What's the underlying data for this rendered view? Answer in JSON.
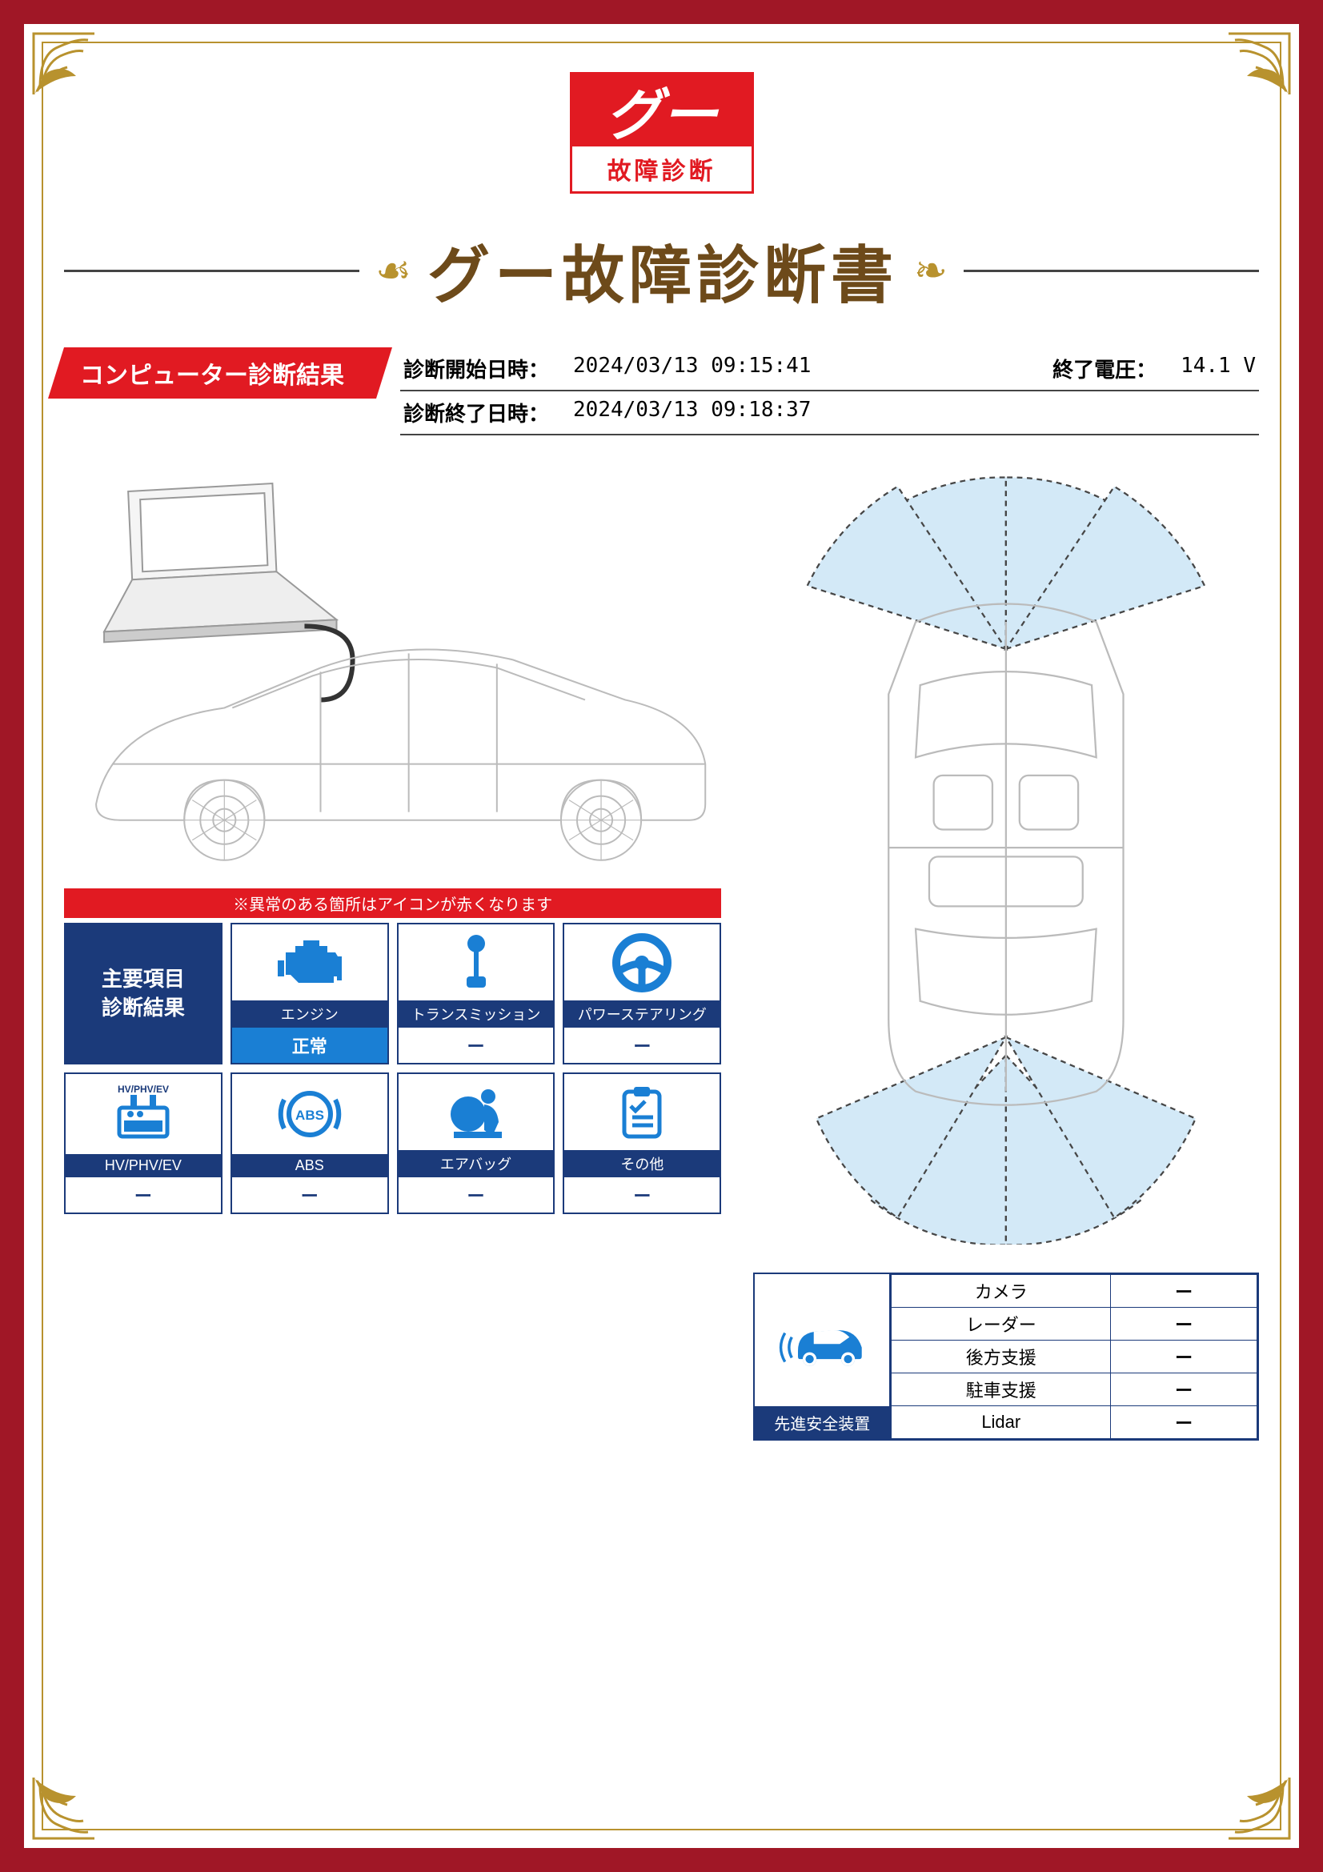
{
  "colors": {
    "frame": "#a01726",
    "gold": "#b8922e",
    "red": "#e11a22",
    "navy": "#1b3a7a",
    "blue": "#1a7fd4",
    "icon": "#1a7fd4",
    "title_brown": "#6d4a1a"
  },
  "logo": {
    "brand": "グー",
    "subtitle": "故障診断"
  },
  "title": "グー故障診断書",
  "section_tag": "コンピューター診断結果",
  "meta": {
    "start_label": "診断開始日時：",
    "start_value": "2024/03/13 09:15:41",
    "voltage_label": "終了電圧：",
    "voltage_value": "14.1 V",
    "end_label": "診断終了日時：",
    "end_value": "2024/03/13 09:18:37"
  },
  "diag": {
    "banner": "※異常のある箇所はアイコンが赤くなります",
    "header_line1": "主要項目",
    "header_line2": "診断結果",
    "items": [
      {
        "label": "エンジン",
        "status": "正常",
        "status_class": "ok",
        "icon": "engine"
      },
      {
        "label": "トランスミッション",
        "status": "ー",
        "status_class": "",
        "icon": "transmission"
      },
      {
        "label": "パワーステアリング",
        "status": "ー",
        "status_class": "",
        "icon": "steering"
      },
      {
        "label": "HV/PHV/EV",
        "status": "ー",
        "status_class": "",
        "icon": "hvev"
      },
      {
        "label": "ABS",
        "status": "ー",
        "status_class": "",
        "icon": "abs"
      },
      {
        "label": "エアバッグ",
        "status": "ー",
        "status_class": "",
        "icon": "airbag"
      },
      {
        "label": "その他",
        "status": "ー",
        "status_class": "",
        "icon": "clipboard"
      }
    ]
  },
  "safety": {
    "title": "先進安全装置",
    "rows": [
      {
        "name": "カメラ",
        "value": "ー"
      },
      {
        "name": "レーダー",
        "value": "ー"
      },
      {
        "name": "後方支援",
        "value": "ー"
      },
      {
        "name": "駐車支援",
        "value": "ー"
      },
      {
        "name": "Lidar",
        "value": "ー"
      }
    ]
  }
}
